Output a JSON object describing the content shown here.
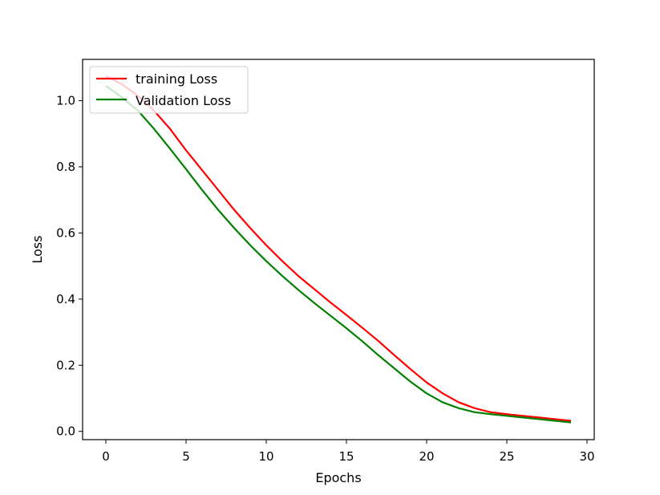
{
  "chart_data": {
    "type": "line",
    "title": "",
    "xlabel": "Epochs",
    "ylabel": "Loss",
    "xlim": [
      -1.45,
      30.45
    ],
    "ylim": [
      -0.025,
      1.125
    ],
    "xticks": [
      0,
      5,
      10,
      15,
      20,
      25,
      30
    ],
    "yticks": [
      0.0,
      0.2,
      0.4,
      0.6,
      0.8,
      1.0
    ],
    "xtick_labels": [
      "0",
      "5",
      "10",
      "15",
      "20",
      "25",
      "30"
    ],
    "ytick_labels": [
      "0.0",
      "0.2",
      "0.4",
      "0.6",
      "0.8",
      "1.0"
    ],
    "grid": false,
    "legend_position": "top-left",
    "series": [
      {
        "name": "training Loss",
        "color": "#ff0000",
        "x": [
          0,
          1,
          2,
          3,
          4,
          5,
          6,
          7,
          8,
          9,
          10,
          11,
          12,
          13,
          14,
          15,
          16,
          17,
          18,
          19,
          20,
          21,
          22,
          23,
          24,
          25,
          26,
          27,
          28,
          29
        ],
        "values": [
          1.075,
          1.05,
          1.015,
          0.97,
          0.915,
          0.85,
          0.79,
          0.73,
          0.67,
          0.615,
          0.563,
          0.515,
          0.47,
          0.43,
          0.39,
          0.352,
          0.313,
          0.273,
          0.23,
          0.188,
          0.148,
          0.115,
          0.088,
          0.07,
          0.058,
          0.052,
          0.047,
          0.042,
          0.037,
          0.032
        ]
      },
      {
        "name": "Validation Loss",
        "color": "#008000",
        "x": [
          0,
          1,
          2,
          3,
          4,
          5,
          6,
          7,
          8,
          9,
          10,
          11,
          12,
          13,
          14,
          15,
          16,
          17,
          18,
          19,
          20,
          21,
          22,
          23,
          24,
          25,
          26,
          27,
          28,
          29
        ],
        "values": [
          1.045,
          1.01,
          0.97,
          0.915,
          0.855,
          0.793,
          0.73,
          0.67,
          0.615,
          0.563,
          0.515,
          0.47,
          0.428,
          0.388,
          0.35,
          0.312,
          0.272,
          0.23,
          0.19,
          0.15,
          0.115,
          0.088,
          0.07,
          0.058,
          0.052,
          0.047,
          0.042,
          0.037,
          0.032,
          0.027
        ]
      }
    ]
  }
}
